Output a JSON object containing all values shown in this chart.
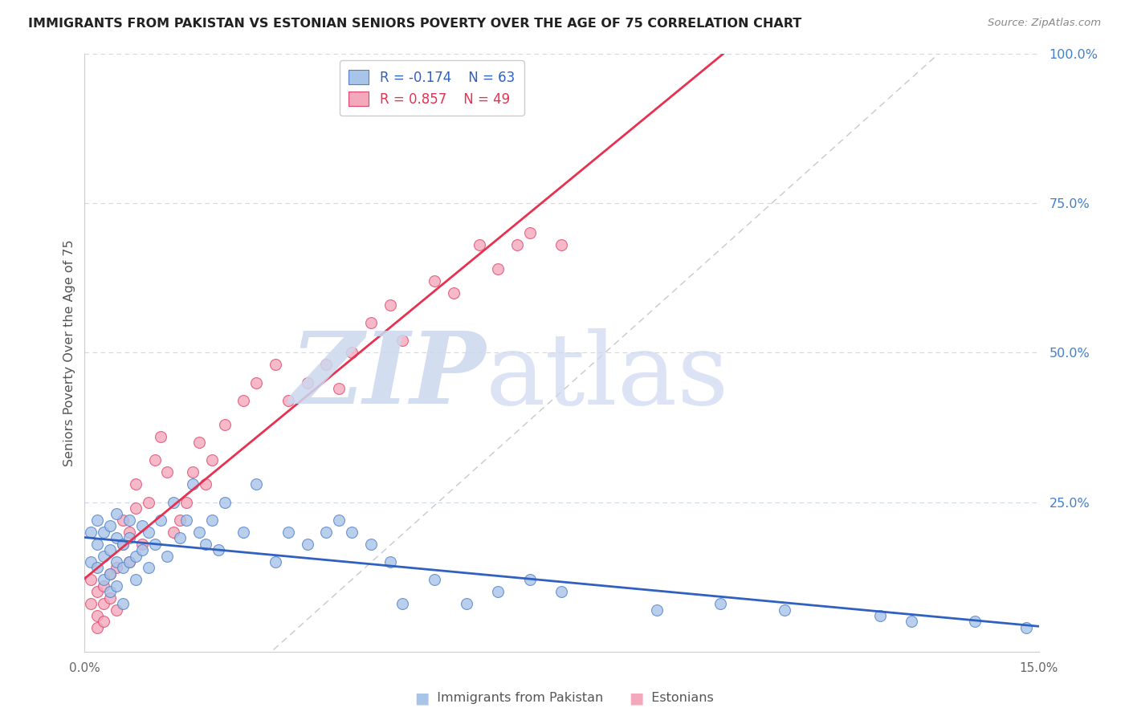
{
  "title": "IMMIGRANTS FROM PAKISTAN VS ESTONIAN SENIORS POVERTY OVER THE AGE OF 75 CORRELATION CHART",
  "source": "Source: ZipAtlas.com",
  "ylabel": "Seniors Poverty Over the Age of 75",
  "xlim": [
    0.0,
    0.15
  ],
  "ylim": [
    0.0,
    1.0
  ],
  "blue_R": -0.174,
  "blue_N": 63,
  "pink_R": 0.857,
  "pink_N": 49,
  "blue_dot_color": "#a8c4e8",
  "pink_dot_color": "#f4a8bc",
  "blue_edge_color": "#5080c8",
  "pink_edge_color": "#e04868",
  "blue_line_color": "#3060c0",
  "pink_line_color": "#e83050",
  "right_axis_color": "#4080cc",
  "grid_color": "#d0d8e8",
  "ref_line_color": "#c8c8d0",
  "title_color": "#222222",
  "legend_label_blue": "Immigrants from Pakistan",
  "legend_label_pink": "Estonians",
  "blue_scatter_x": [
    0.001,
    0.001,
    0.002,
    0.002,
    0.002,
    0.003,
    0.003,
    0.003,
    0.004,
    0.004,
    0.004,
    0.004,
    0.005,
    0.005,
    0.005,
    0.005,
    0.006,
    0.006,
    0.006,
    0.007,
    0.007,
    0.007,
    0.008,
    0.008,
    0.009,
    0.009,
    0.01,
    0.01,
    0.011,
    0.012,
    0.013,
    0.014,
    0.015,
    0.016,
    0.017,
    0.018,
    0.019,
    0.02,
    0.021,
    0.022,
    0.025,
    0.027,
    0.03,
    0.032,
    0.035,
    0.038,
    0.04,
    0.042,
    0.045,
    0.048,
    0.05,
    0.055,
    0.06,
    0.065,
    0.07,
    0.075,
    0.09,
    0.1,
    0.11,
    0.125,
    0.13,
    0.14,
    0.148
  ],
  "blue_scatter_y": [
    0.15,
    0.2,
    0.14,
    0.18,
    0.22,
    0.12,
    0.16,
    0.2,
    0.13,
    0.17,
    0.21,
    0.1,
    0.15,
    0.19,
    0.11,
    0.23,
    0.14,
    0.18,
    0.08,
    0.15,
    0.19,
    0.22,
    0.16,
    0.12,
    0.17,
    0.21,
    0.14,
    0.2,
    0.18,
    0.22,
    0.16,
    0.25,
    0.19,
    0.22,
    0.28,
    0.2,
    0.18,
    0.22,
    0.17,
    0.25,
    0.2,
    0.28,
    0.15,
    0.2,
    0.18,
    0.2,
    0.22,
    0.2,
    0.18,
    0.15,
    0.08,
    0.12,
    0.08,
    0.1,
    0.12,
    0.1,
    0.07,
    0.08,
    0.07,
    0.06,
    0.05,
    0.05,
    0.04
  ],
  "pink_scatter_x": [
    0.001,
    0.001,
    0.002,
    0.002,
    0.002,
    0.003,
    0.003,
    0.003,
    0.004,
    0.004,
    0.005,
    0.005,
    0.006,
    0.006,
    0.007,
    0.007,
    0.008,
    0.008,
    0.009,
    0.01,
    0.011,
    0.012,
    0.013,
    0.014,
    0.015,
    0.016,
    0.017,
    0.018,
    0.019,
    0.02,
    0.022,
    0.025,
    0.027,
    0.03,
    0.032,
    0.035,
    0.038,
    0.04,
    0.042,
    0.045,
    0.048,
    0.05,
    0.055,
    0.058,
    0.062,
    0.065,
    0.068,
    0.07,
    0.075
  ],
  "pink_scatter_y": [
    0.08,
    0.12,
    0.06,
    0.1,
    0.04,
    0.08,
    0.05,
    0.11,
    0.09,
    0.13,
    0.07,
    0.14,
    0.18,
    0.22,
    0.15,
    0.2,
    0.24,
    0.28,
    0.18,
    0.25,
    0.32,
    0.36,
    0.3,
    0.2,
    0.22,
    0.25,
    0.3,
    0.35,
    0.28,
    0.32,
    0.38,
    0.42,
    0.45,
    0.48,
    0.42,
    0.45,
    0.48,
    0.44,
    0.5,
    0.55,
    0.58,
    0.52,
    0.62,
    0.6,
    0.68,
    0.64,
    0.68,
    0.7,
    0.68
  ]
}
